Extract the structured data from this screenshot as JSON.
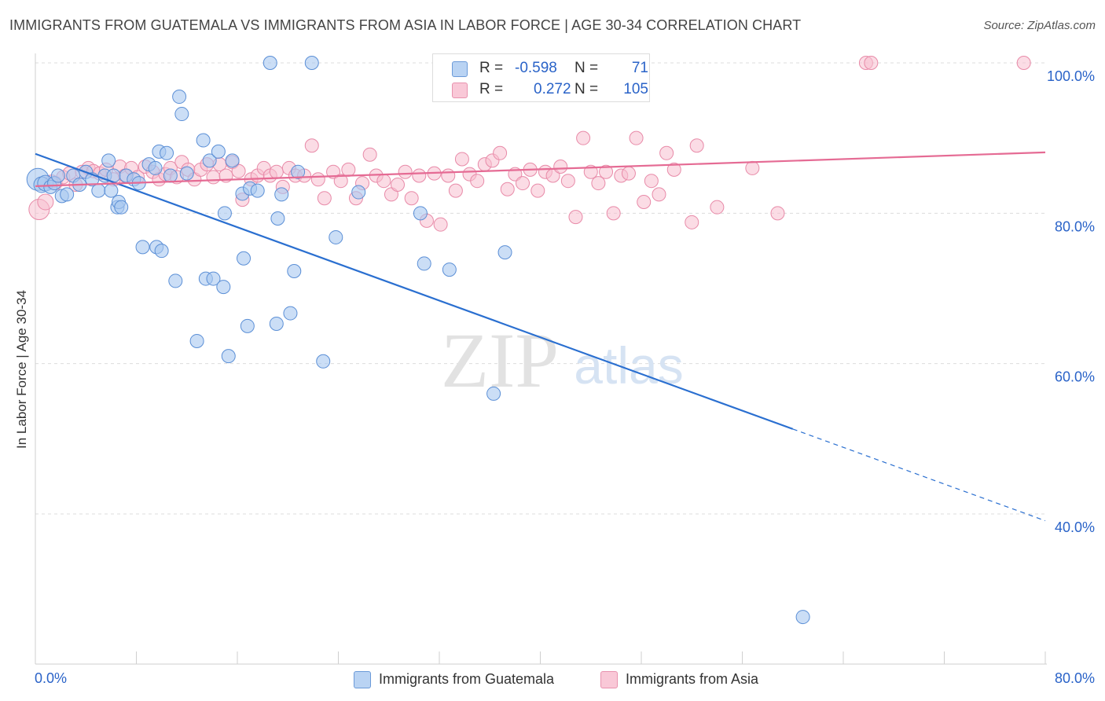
{
  "header": {
    "title": "IMMIGRANTS FROM GUATEMALA VS IMMIGRANTS FROM ASIA IN LABOR FORCE | AGE 30-34 CORRELATION CHART",
    "source": "Source: ZipAtlas.com"
  },
  "watermark": {
    "zip": "ZIP",
    "atlas": "atlas"
  },
  "legend": {
    "r_label": "R =",
    "n_label": "N =",
    "series": [
      {
        "r": "-0.598",
        "n": "71"
      },
      {
        "r": "0.272",
        "n": "105"
      }
    ]
  },
  "colors": {
    "guatemala_fill": "#a9c8f0",
    "guatemala_stroke": "#5b8fd6",
    "guatemala_line": "#2a6fd0",
    "asia_fill": "#f7bfd0",
    "asia_stroke": "#e88aa8",
    "asia_line": "#e56b94",
    "axis_text": "#2a63c8"
  },
  "chart_data": {
    "type": "scatter",
    "title": "IMMIGRANTS FROM GUATEMALA VS IMMIGRANTS FROM ASIA IN LABOR FORCE | AGE 30-34 CORRELATION CHART",
    "xlabel": "",
    "ylabel": "In Labor Force | Age 30-34",
    "xlim": [
      0,
      80
    ],
    "ylim": [
      20,
      102
    ],
    "x_tick_labels": [
      "0.0%",
      "80.0%"
    ],
    "y_ticks": [
      40,
      60,
      80,
      100
    ],
    "y_tick_labels": [
      "40.0%",
      "60.0%",
      "80.0%",
      "100.0%"
    ],
    "grid": true,
    "series": [
      {
        "name": "Immigrants from Guatemala",
        "trend": {
          "x": [
            0,
            60
          ],
          "y": [
            87.9,
            51.3
          ],
          "dashed_to": {
            "x": 80,
            "y": 39.1
          }
        },
        "points": [
          [
            0.2,
            84.5
          ],
          [
            0.5,
            83.8
          ],
          [
            0.8,
            84.0
          ],
          [
            1.2,
            83.5
          ],
          [
            1.5,
            84.0
          ],
          [
            1.8,
            85.0
          ],
          [
            2.1,
            82.3
          ],
          [
            2.5,
            82.5
          ],
          [
            3.0,
            85.0
          ],
          [
            3.5,
            83.8
          ],
          [
            4.0,
            85.5
          ],
          [
            4.5,
            84.5
          ],
          [
            5.0,
            83.0
          ],
          [
            5.5,
            85.0
          ],
          [
            5.8,
            87.0
          ],
          [
            6.0,
            83.0
          ],
          [
            6.2,
            85.0
          ],
          [
            6.5,
            80.8
          ],
          [
            6.6,
            81.5
          ],
          [
            6.8,
            80.8
          ],
          [
            7.2,
            85.0
          ],
          [
            7.8,
            84.5
          ],
          [
            8.2,
            84.0
          ],
          [
            8.5,
            75.5
          ],
          [
            9.0,
            86.5
          ],
          [
            9.5,
            86.0
          ],
          [
            9.6,
            75.5
          ],
          [
            9.8,
            88.2
          ],
          [
            10.0,
            75.0
          ],
          [
            10.4,
            88.0
          ],
          [
            10.7,
            85.0
          ],
          [
            11.1,
            71.0
          ],
          [
            11.4,
            95.5
          ],
          [
            11.6,
            93.2
          ],
          [
            12.0,
            85.3
          ],
          [
            12.8,
            63.0
          ],
          [
            13.3,
            89.7
          ],
          [
            13.5,
            71.3
          ],
          [
            13.8,
            87.0
          ],
          [
            14.1,
            71.3
          ],
          [
            14.5,
            88.2
          ],
          [
            14.9,
            70.2
          ],
          [
            15.0,
            80.0
          ],
          [
            15.3,
            61.0
          ],
          [
            15.6,
            87.0
          ],
          [
            16.4,
            82.6
          ],
          [
            16.5,
            74.0
          ],
          [
            16.8,
            65.0
          ],
          [
            17.0,
            83.3
          ],
          [
            17.6,
            83.0
          ],
          [
            18.6,
            100.0
          ],
          [
            19.1,
            65.3
          ],
          [
            19.2,
            79.3
          ],
          [
            19.5,
            82.5
          ],
          [
            20.2,
            66.7
          ],
          [
            20.5,
            72.3
          ],
          [
            20.8,
            85.5
          ],
          [
            21.9,
            100.0
          ],
          [
            22.8,
            60.3
          ],
          [
            23.8,
            76.8
          ],
          [
            25.6,
            82.8
          ],
          [
            30.5,
            80.0
          ],
          [
            30.8,
            73.3
          ],
          [
            32.8,
            72.5
          ],
          [
            36.3,
            56.0
          ],
          [
            37.2,
            74.8
          ],
          [
            60.8,
            26.3
          ]
        ]
      },
      {
        "name": "Immigrants from Asia",
        "trend": {
          "x": [
            0,
            80
          ],
          "y": [
            83.6,
            88.1
          ]
        },
        "points": [
          [
            0.3,
            80.5
          ],
          [
            0.8,
            81.5
          ],
          [
            1.3,
            84.2
          ],
          [
            1.6,
            84.0
          ],
          [
            2.2,
            84.8
          ],
          [
            2.7,
            85.3
          ],
          [
            3.2,
            83.8
          ],
          [
            3.7,
            85.5
          ],
          [
            4.2,
            86.0
          ],
          [
            4.6,
            85.6
          ],
          [
            5.1,
            85.3
          ],
          [
            5.6,
            85.8
          ],
          [
            6.2,
            84.5
          ],
          [
            6.7,
            86.2
          ],
          [
            7.1,
            85.0
          ],
          [
            7.6,
            86.0
          ],
          [
            8.1,
            84.8
          ],
          [
            8.7,
            86.2
          ],
          [
            9.3,
            85.5
          ],
          [
            9.8,
            84.5
          ],
          [
            10.3,
            85.2
          ],
          [
            10.7,
            86.0
          ],
          [
            11.2,
            84.8
          ],
          [
            11.6,
            86.8
          ],
          [
            12.1,
            85.8
          ],
          [
            12.6,
            84.5
          ],
          [
            13.1,
            85.8
          ],
          [
            13.6,
            86.5
          ],
          [
            14.1,
            84.8
          ],
          [
            14.6,
            86.5
          ],
          [
            15.1,
            85.0
          ],
          [
            15.6,
            86.8
          ],
          [
            16.1,
            85.6
          ],
          [
            16.4,
            81.8
          ],
          [
            17.1,
            84.5
          ],
          [
            17.6,
            85.0
          ],
          [
            18.1,
            86.0
          ],
          [
            18.6,
            85.0
          ],
          [
            19.1,
            85.5
          ],
          [
            19.6,
            83.5
          ],
          [
            20.1,
            86.0
          ],
          [
            20.6,
            85.0
          ],
          [
            21.3,
            85.0
          ],
          [
            21.9,
            89.0
          ],
          [
            22.4,
            84.5
          ],
          [
            22.9,
            82.0
          ],
          [
            23.6,
            85.5
          ],
          [
            24.2,
            84.3
          ],
          [
            24.8,
            85.8
          ],
          [
            25.4,
            82.0
          ],
          [
            25.9,
            84.0
          ],
          [
            26.5,
            87.8
          ],
          [
            27.0,
            85.0
          ],
          [
            27.6,
            84.3
          ],
          [
            28.2,
            82.5
          ],
          [
            28.7,
            83.8
          ],
          [
            29.3,
            85.5
          ],
          [
            29.8,
            82.0
          ],
          [
            30.4,
            85.0
          ],
          [
            31.0,
            79.0
          ],
          [
            31.6,
            85.3
          ],
          [
            32.1,
            78.5
          ],
          [
            32.7,
            85.0
          ],
          [
            33.3,
            83.0
          ],
          [
            33.8,
            87.2
          ],
          [
            34.4,
            85.2
          ],
          [
            35.0,
            84.3
          ],
          [
            35.6,
            86.5
          ],
          [
            36.2,
            87.0
          ],
          [
            36.8,
            88.0
          ],
          [
            37.4,
            83.2
          ],
          [
            38.0,
            85.2
          ],
          [
            38.6,
            84.0
          ],
          [
            39.2,
            85.8
          ],
          [
            39.8,
            83.0
          ],
          [
            40.4,
            85.5
          ],
          [
            41.0,
            85.0
          ],
          [
            41.6,
            86.2
          ],
          [
            42.2,
            84.3
          ],
          [
            42.8,
            79.5
          ],
          [
            43.4,
            90.0
          ],
          [
            44.0,
            85.5
          ],
          [
            44.6,
            84.0
          ],
          [
            45.2,
            85.5
          ],
          [
            45.8,
            80.0
          ],
          [
            46.4,
            85.0
          ],
          [
            47.0,
            85.3
          ],
          [
            47.6,
            90.0
          ],
          [
            48.2,
            81.5
          ],
          [
            48.8,
            84.3
          ],
          [
            49.4,
            82.5
          ],
          [
            50.0,
            88.0
          ],
          [
            50.6,
            85.8
          ],
          [
            52.0,
            78.8
          ],
          [
            52.4,
            89.0
          ],
          [
            54.0,
            80.8
          ],
          [
            56.8,
            86.0
          ],
          [
            58.8,
            80.0
          ],
          [
            65.8,
            100.0
          ],
          [
            66.2,
            100.0
          ],
          [
            78.3,
            100.0
          ]
        ]
      }
    ]
  },
  "bottom_legend": {
    "items": [
      {
        "label": "Immigrants from Guatemala"
      },
      {
        "label": "Immigrants from Asia"
      }
    ]
  }
}
